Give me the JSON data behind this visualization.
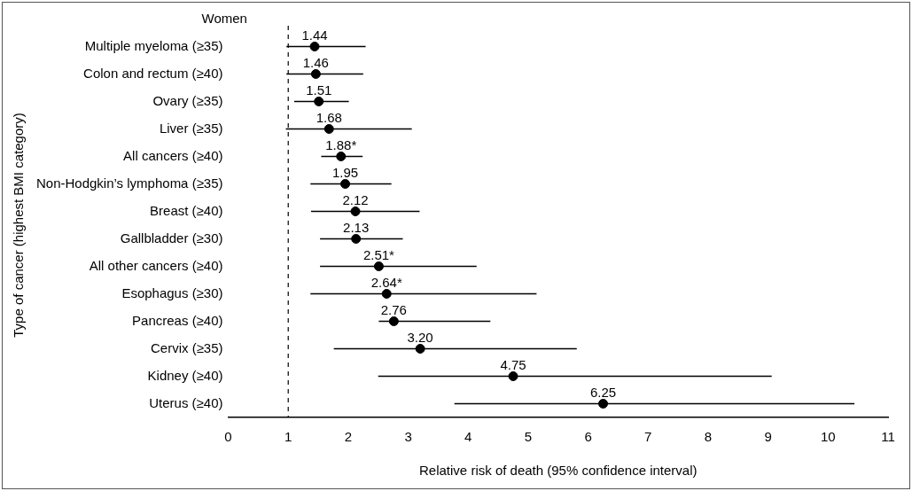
{
  "chart_data": {
    "type": "scatter",
    "orientation": "horizontal",
    "title": "Women",
    "xlabel": "Relative risk of death (95% confidence interval)",
    "ylabel": "Type of cancer (highest BMI category)",
    "categories": [
      "Multiple myeloma (≥35)",
      "Colon and rectum (≥40)",
      "Ovary (≥35)",
      "Liver (≥35)",
      "All cancers (≥40)",
      "Non-Hodgkin’s lymphoma (≥35)",
      "Breast (≥40)",
      "Gallbladder (≥30)",
      "All other cancers (≥40)",
      "Esophagus (≥30)",
      "Pancreas (≥40)",
      "Cervix (≥35)",
      "Kidney (≥40)",
      "Uterus (≥40)"
    ],
    "values": [
      1.44,
      1.46,
      1.51,
      1.68,
      1.88,
      1.95,
      2.12,
      2.13,
      2.51,
      2.64,
      2.76,
      3.2,
      4.75,
      6.25
    ],
    "value_labels": [
      "1.44",
      "1.46",
      "1.51",
      "1.68",
      "1.88*",
      "1.95",
      "2.12",
      "2.13",
      "2.51*",
      "2.64*",
      "2.76",
      "3.20",
      "4.75",
      "6.25"
    ],
    "errors": [
      [
        0.97,
        2.29
      ],
      [
        0.97,
        2.25
      ],
      [
        1.1,
        2.01
      ],
      [
        0.96,
        3.06
      ],
      [
        1.55,
        2.24
      ],
      [
        1.37,
        2.72
      ],
      [
        1.38,
        3.19
      ],
      [
        1.53,
        2.91
      ],
      [
        1.53,
        4.14
      ],
      [
        1.37,
        5.14
      ],
      [
        2.51,
        4.37
      ],
      [
        1.76,
        5.81
      ],
      [
        2.5,
        9.06
      ],
      [
        3.77,
        10.44
      ]
    ],
    "color": "#000000",
    "marker": "circle",
    "xlim": [
      0,
      11
    ],
    "xticks": [
      0,
      1,
      2,
      3,
      4,
      5,
      6,
      7,
      8,
      9,
      10,
      11
    ],
    "ref_lines": [
      {
        "axis": "x",
        "value": 1,
        "line_style": "dashed",
        "color": "#000000"
      }
    ],
    "grid": false,
    "legend": false
  }
}
